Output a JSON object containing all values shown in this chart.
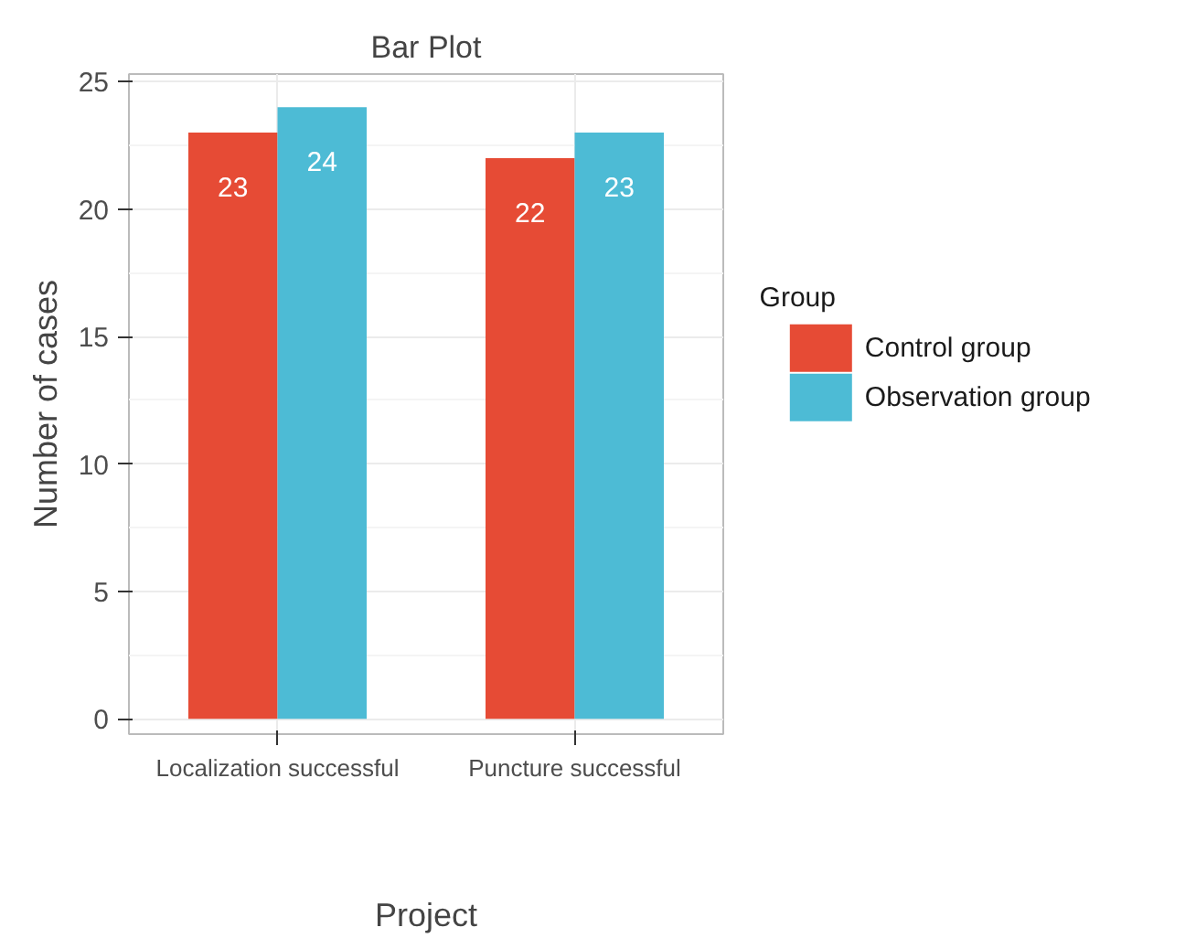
{
  "chart_data": {
    "type": "bar",
    "title": "Bar Plot",
    "xlabel": "Project",
    "ylabel": "Number of cases",
    "legend_title": "Group",
    "categories": [
      "Localization successful",
      "Puncture successful"
    ],
    "series": [
      {
        "name": "Control group",
        "color": "#e64b35",
        "values": [
          23,
          22
        ]
      },
      {
        "name": "Observation group",
        "color": "#4dbbd5",
        "values": [
          24,
          23
        ]
      }
    ],
    "ylim": [
      -0.6,
      25.3
    ],
    "yticks": [
      0,
      5,
      10,
      15,
      20,
      25
    ],
    "grid": true,
    "legend": "right",
    "data_labels": true
  }
}
